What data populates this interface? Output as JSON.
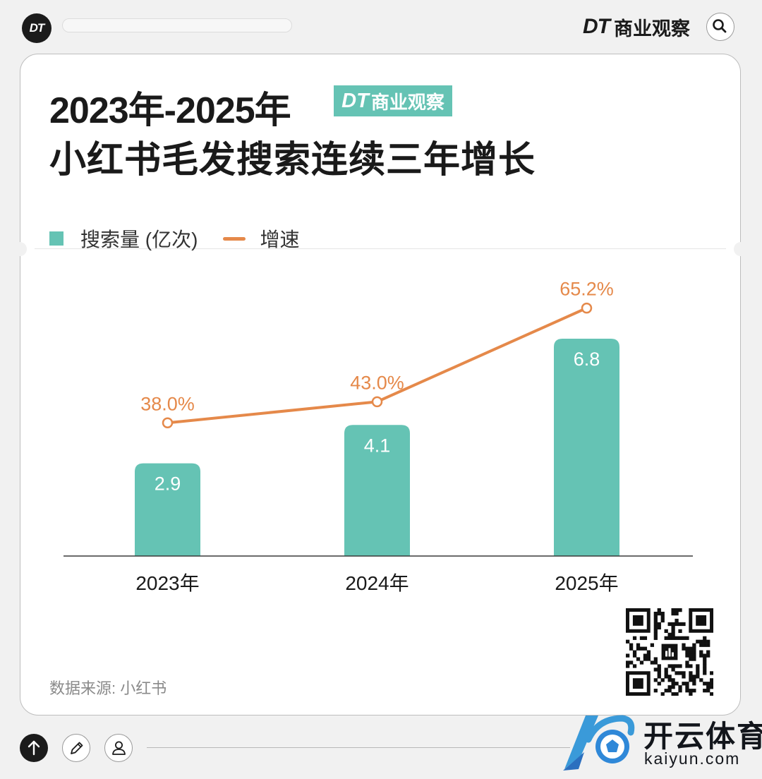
{
  "header": {
    "logo_text": "DT",
    "brand_dt": "DT",
    "brand_name": "商业观察",
    "search_icon": "search-icon"
  },
  "title": {
    "line1": "2023年-2025年",
    "badge_dt": "DT",
    "badge_name": "商业观察",
    "line2": "小红书毛发搜索连续三年增长"
  },
  "colors": {
    "bar": "#65c3b4",
    "line": "#e5894a",
    "line_label": "#e5894a",
    "bar_label": "#ffffff"
  },
  "chart_data": {
    "type": "bar",
    "categories": [
      "2023年",
      "2024年",
      "2025年"
    ],
    "series": [
      {
        "name": "搜索量 (亿次)",
        "type": "bar",
        "values": [
          2.9,
          4.1,
          6.8
        ],
        "labels": [
          "2.9",
          "4.1",
          "6.8"
        ]
      },
      {
        "name": "增速",
        "type": "line",
        "values": [
          38.0,
          43.0,
          65.2
        ],
        "labels": [
          "38.0%",
          "43.0%",
          "65.2%"
        ]
      }
    ],
    "legend": "top-left",
    "grid": false
  },
  "footer": {
    "source": "数据来源: 小红书"
  },
  "watermark": {
    "name": "开云体育",
    "url": "kaiyun.com"
  },
  "icons": [
    "arrow-up-icon",
    "pencil-icon",
    "user-icon"
  ]
}
